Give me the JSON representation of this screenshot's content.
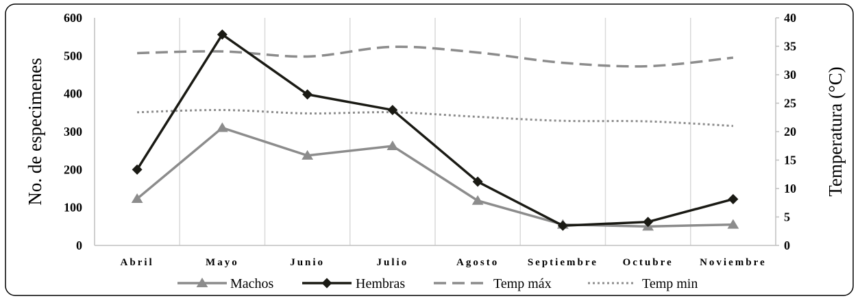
{
  "chart_data": {
    "type": "line",
    "categories": [
      "Abril",
      "Mayo",
      "Junio",
      "Julio",
      "Agosto",
      "Septiembre",
      "Octubre",
      "Noviembre"
    ],
    "series": [
      {
        "name": "Machos",
        "axis": "left",
        "style": "solid-triangle",
        "color": "#8c8c8c",
        "values": [
          123,
          310,
          237,
          262,
          118,
          55,
          50,
          55
        ]
      },
      {
        "name": "Hembras",
        "axis": "left",
        "style": "solid-diamond",
        "color": "#1a1a14",
        "values": [
          200,
          556,
          398,
          357,
          168,
          52,
          62,
          122
        ]
      },
      {
        "name": "Temp máx",
        "axis": "right",
        "style": "dashed",
        "color": "#8c8c8c",
        "values": [
          33.8,
          34.1,
          33.2,
          34.9,
          33.9,
          32.1,
          31.5,
          33.0
        ]
      },
      {
        "name": "Temp min",
        "axis": "right",
        "style": "dotted",
        "color": "#8c8c8c",
        "values": [
          23.4,
          23.8,
          23.2,
          23.4,
          22.6,
          21.9,
          21.8,
          21.0
        ]
      }
    ],
    "ylabel": "No. de especimenes",
    "ylabel_right": "Temperatura (°C)",
    "ylim": [
      0,
      600
    ],
    "yticks": [
      "0",
      "100",
      "200",
      "300",
      "400",
      "500",
      "600"
    ],
    "ylim_right": [
      0,
      40
    ],
    "yticks_right": [
      "0",
      "5",
      "10",
      "15",
      "20",
      "25",
      "30",
      "35",
      "40"
    ],
    "grid": "vertical",
    "legend_position": "bottom"
  }
}
